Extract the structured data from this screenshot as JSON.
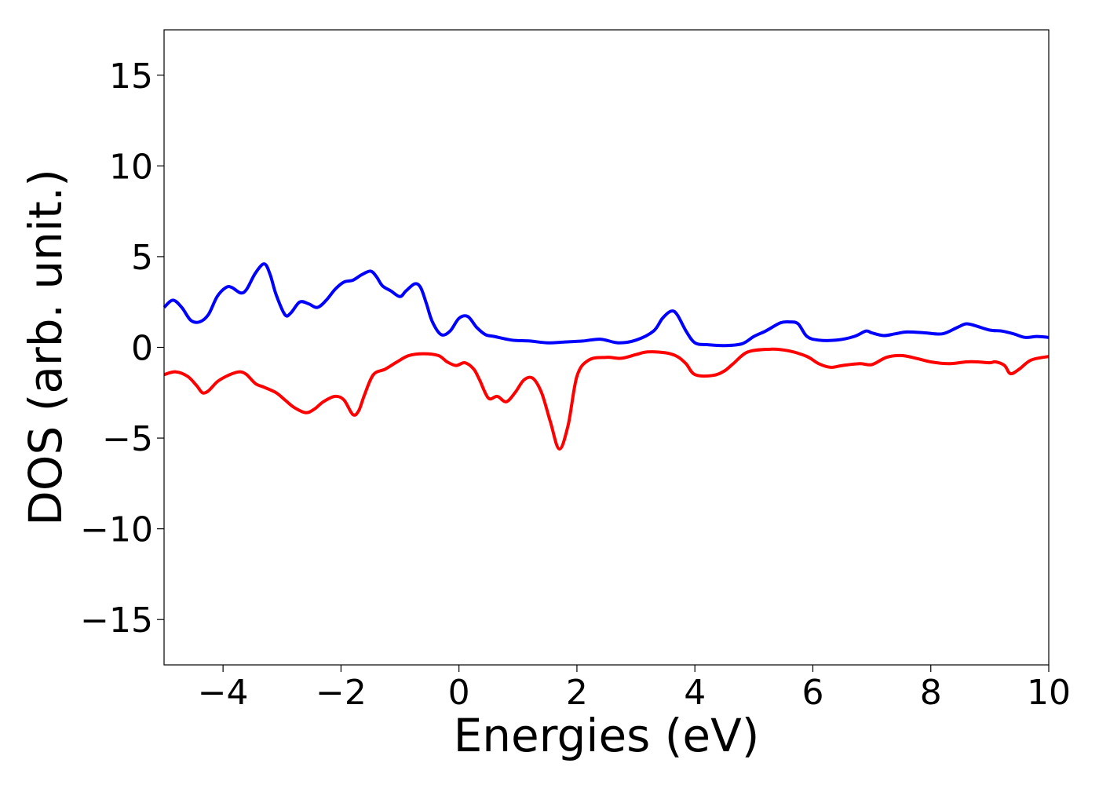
{
  "chart_data": {
    "type": "line",
    "title": "",
    "xlabel": "Energies (eV)",
    "ylabel": "DOS (arb. unit.)",
    "xlim": [
      -5,
      10
    ],
    "ylim": [
      -17.5,
      17.5
    ],
    "xticks": [
      -4,
      -2,
      0,
      2,
      4,
      6,
      8,
      10
    ],
    "xtick_labels": [
      "−4",
      "−2",
      "0",
      "2",
      "4",
      "6",
      "8",
      "10"
    ],
    "yticks": [
      15,
      10,
      5,
      0,
      -5,
      -10,
      -15
    ],
    "ytick_labels": [
      "15",
      "10",
      "5",
      "0",
      "−5",
      "−10",
      "−15"
    ],
    "grid": false,
    "series": [
      {
        "color": "#0000ff",
        "x": [
          -5.0,
          -4.85,
          -4.7,
          -4.55,
          -4.4,
          -4.25,
          -4.1,
          -3.95,
          -3.85,
          -3.7,
          -3.6,
          -3.45,
          -3.3,
          -3.2,
          -3.1,
          -2.95,
          -2.85,
          -2.7,
          -2.55,
          -2.4,
          -2.25,
          -2.1,
          -1.95,
          -1.8,
          -1.65,
          -1.5,
          -1.4,
          -1.3,
          -1.15,
          -1.0,
          -0.9,
          -0.75,
          -0.65,
          -0.55,
          -0.45,
          -0.3,
          -0.15,
          0.0,
          0.15,
          0.3,
          0.45,
          0.6,
          0.9,
          1.2,
          1.5,
          1.8,
          2.1,
          2.4,
          2.7,
          3.0,
          3.3,
          3.45,
          3.6,
          3.7,
          3.85,
          4.0,
          4.2,
          4.5,
          4.8,
          5.0,
          5.2,
          5.45,
          5.6,
          5.75,
          5.9,
          6.1,
          6.4,
          6.7,
          6.9,
          7.0,
          7.2,
          7.4,
          7.6,
          7.9,
          8.2,
          8.45,
          8.6,
          8.75,
          9.0,
          9.2,
          9.4,
          9.6,
          9.8,
          10.0
        ],
        "values": [
          2.2,
          2.6,
          2.2,
          1.5,
          1.4,
          1.8,
          2.8,
          3.3,
          3.3,
          3.0,
          3.2,
          4.1,
          4.6,
          4.0,
          2.9,
          1.8,
          1.9,
          2.5,
          2.4,
          2.2,
          2.6,
          3.2,
          3.6,
          3.7,
          4.0,
          4.2,
          3.9,
          3.4,
          3.1,
          2.8,
          3.1,
          3.5,
          3.3,
          2.4,
          1.4,
          0.7,
          0.9,
          1.6,
          1.7,
          1.1,
          0.7,
          0.6,
          0.4,
          0.35,
          0.25,
          0.3,
          0.35,
          0.45,
          0.25,
          0.4,
          0.9,
          1.6,
          2.0,
          1.8,
          0.9,
          0.25,
          0.15,
          0.1,
          0.2,
          0.6,
          0.9,
          1.35,
          1.4,
          1.3,
          0.6,
          0.4,
          0.4,
          0.6,
          0.9,
          0.8,
          0.65,
          0.75,
          0.85,
          0.8,
          0.75,
          1.1,
          1.3,
          1.2,
          0.95,
          0.9,
          0.75,
          0.55,
          0.6,
          0.55
        ]
      },
      {
        "color": "#ff0000",
        "x": [
          -5.0,
          -4.8,
          -4.6,
          -4.45,
          -4.35,
          -4.25,
          -4.1,
          -3.95,
          -3.8,
          -3.7,
          -3.6,
          -3.45,
          -3.3,
          -3.1,
          -2.95,
          -2.8,
          -2.6,
          -2.45,
          -2.3,
          -2.1,
          -1.95,
          -1.8,
          -1.7,
          -1.6,
          -1.45,
          -1.25,
          -1.05,
          -0.85,
          -0.6,
          -0.35,
          -0.2,
          -0.05,
          0.1,
          0.25,
          0.35,
          0.5,
          0.65,
          0.8,
          0.95,
          1.1,
          1.25,
          1.4,
          1.55,
          1.7,
          1.85,
          2.0,
          2.2,
          2.5,
          2.75,
          3.0,
          3.2,
          3.5,
          3.7,
          3.85,
          4.0,
          4.3,
          4.5,
          4.65,
          4.9,
          5.3,
          5.6,
          5.9,
          6.1,
          6.3,
          6.5,
          6.8,
          7.0,
          7.25,
          7.5,
          7.75,
          8.0,
          8.3,
          8.6,
          8.8,
          9.0,
          9.1,
          9.25,
          9.35,
          9.5,
          9.7,
          10.0
        ],
        "values": [
          -1.5,
          -1.35,
          -1.6,
          -2.1,
          -2.5,
          -2.4,
          -1.9,
          -1.6,
          -1.4,
          -1.35,
          -1.5,
          -2.0,
          -2.2,
          -2.5,
          -2.9,
          -3.3,
          -3.6,
          -3.4,
          -3.0,
          -2.7,
          -2.9,
          -3.7,
          -3.5,
          -2.6,
          -1.5,
          -1.2,
          -0.8,
          -0.45,
          -0.35,
          -0.45,
          -0.8,
          -1.0,
          -0.85,
          -1.2,
          -1.8,
          -2.8,
          -2.7,
          -3.0,
          -2.5,
          -1.8,
          -1.7,
          -2.5,
          -4.1,
          -5.6,
          -4.3,
          -1.6,
          -0.7,
          -0.55,
          -0.6,
          -0.4,
          -0.25,
          -0.3,
          -0.5,
          -0.9,
          -1.5,
          -1.55,
          -1.3,
          -0.9,
          -0.25,
          -0.1,
          -0.2,
          -0.5,
          -0.9,
          -1.1,
          -1.0,
          -0.9,
          -0.95,
          -0.55,
          -0.45,
          -0.6,
          -0.8,
          -0.9,
          -0.8,
          -0.8,
          -0.85,
          -0.8,
          -1.0,
          -1.45,
          -1.2,
          -0.7,
          -0.5
        ]
      }
    ]
  }
}
